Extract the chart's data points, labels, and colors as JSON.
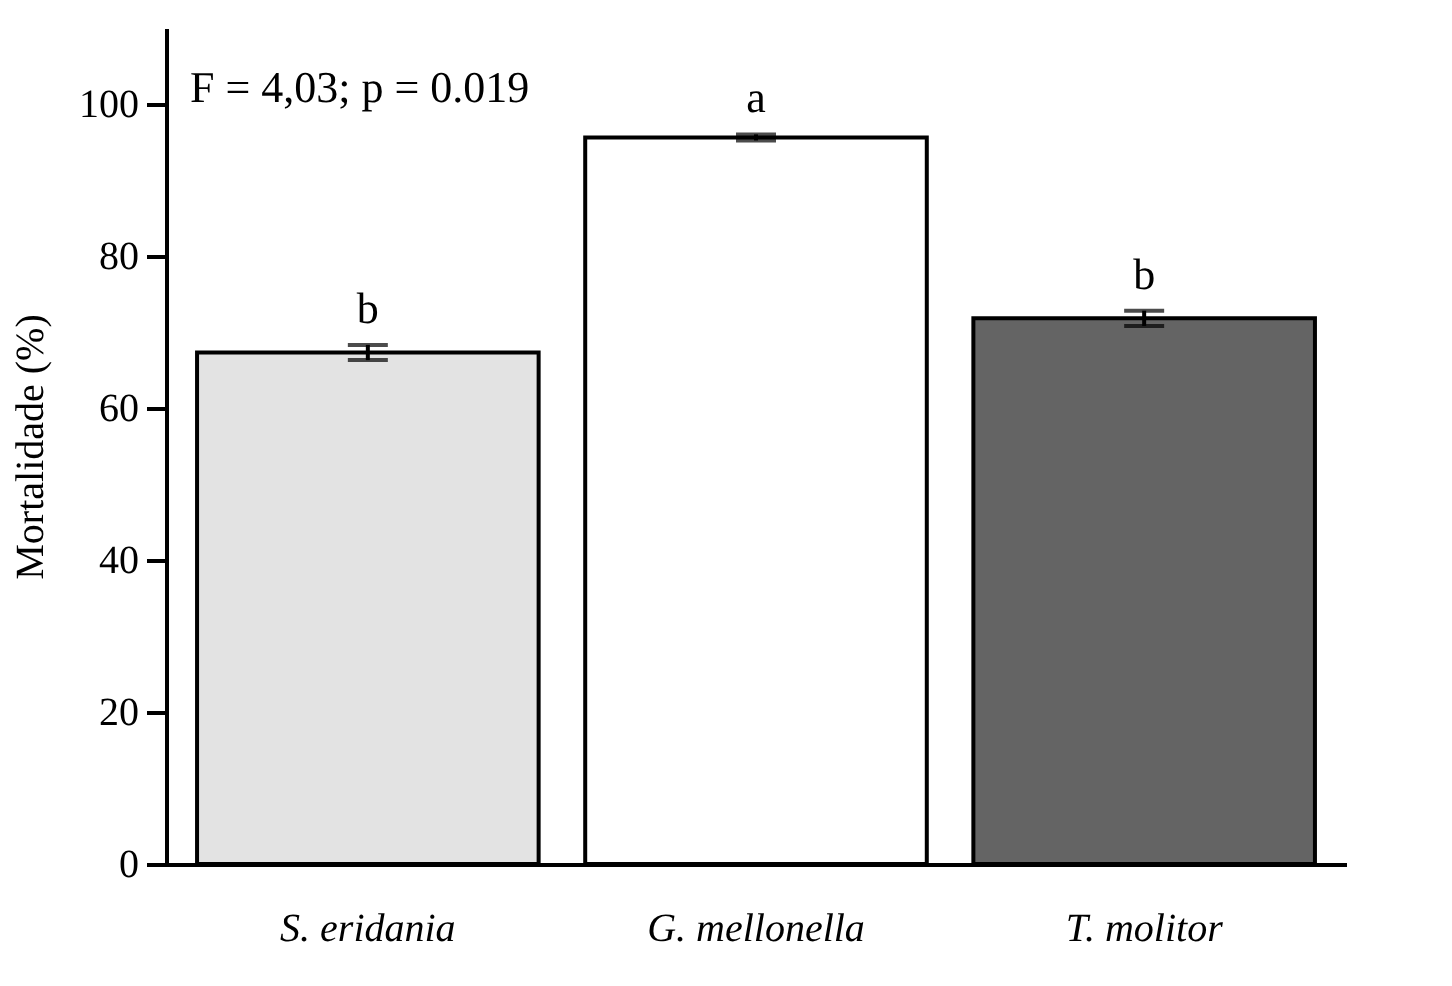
{
  "chart_data": {
    "type": "bar",
    "ylabel": "Mortalidade (%)",
    "categories": [
      "S. eridania",
      "G. mellonella",
      "T. molitor"
    ],
    "values": [
      67.3,
      95.6,
      71.8
    ],
    "colors": [
      "#e3e3e3",
      "#ffffff",
      "#646464"
    ],
    "errors": [
      1.0,
      0.4,
      1.0
    ],
    "ylim": [
      0,
      110
    ],
    "yticks": [
      0,
      20,
      40,
      60,
      80,
      100
    ],
    "grid": false,
    "annotations": [
      "F = 4,03; p = 0.019",
      {
        "text": "b",
        "x": "S. eridania",
        "y": 68.3
      },
      {
        "text": "a",
        "x": "G. mellonella",
        "y": 96.0
      },
      {
        "text": "b",
        "x": "T. molitor",
        "y": 72.8
      }
    ]
  }
}
